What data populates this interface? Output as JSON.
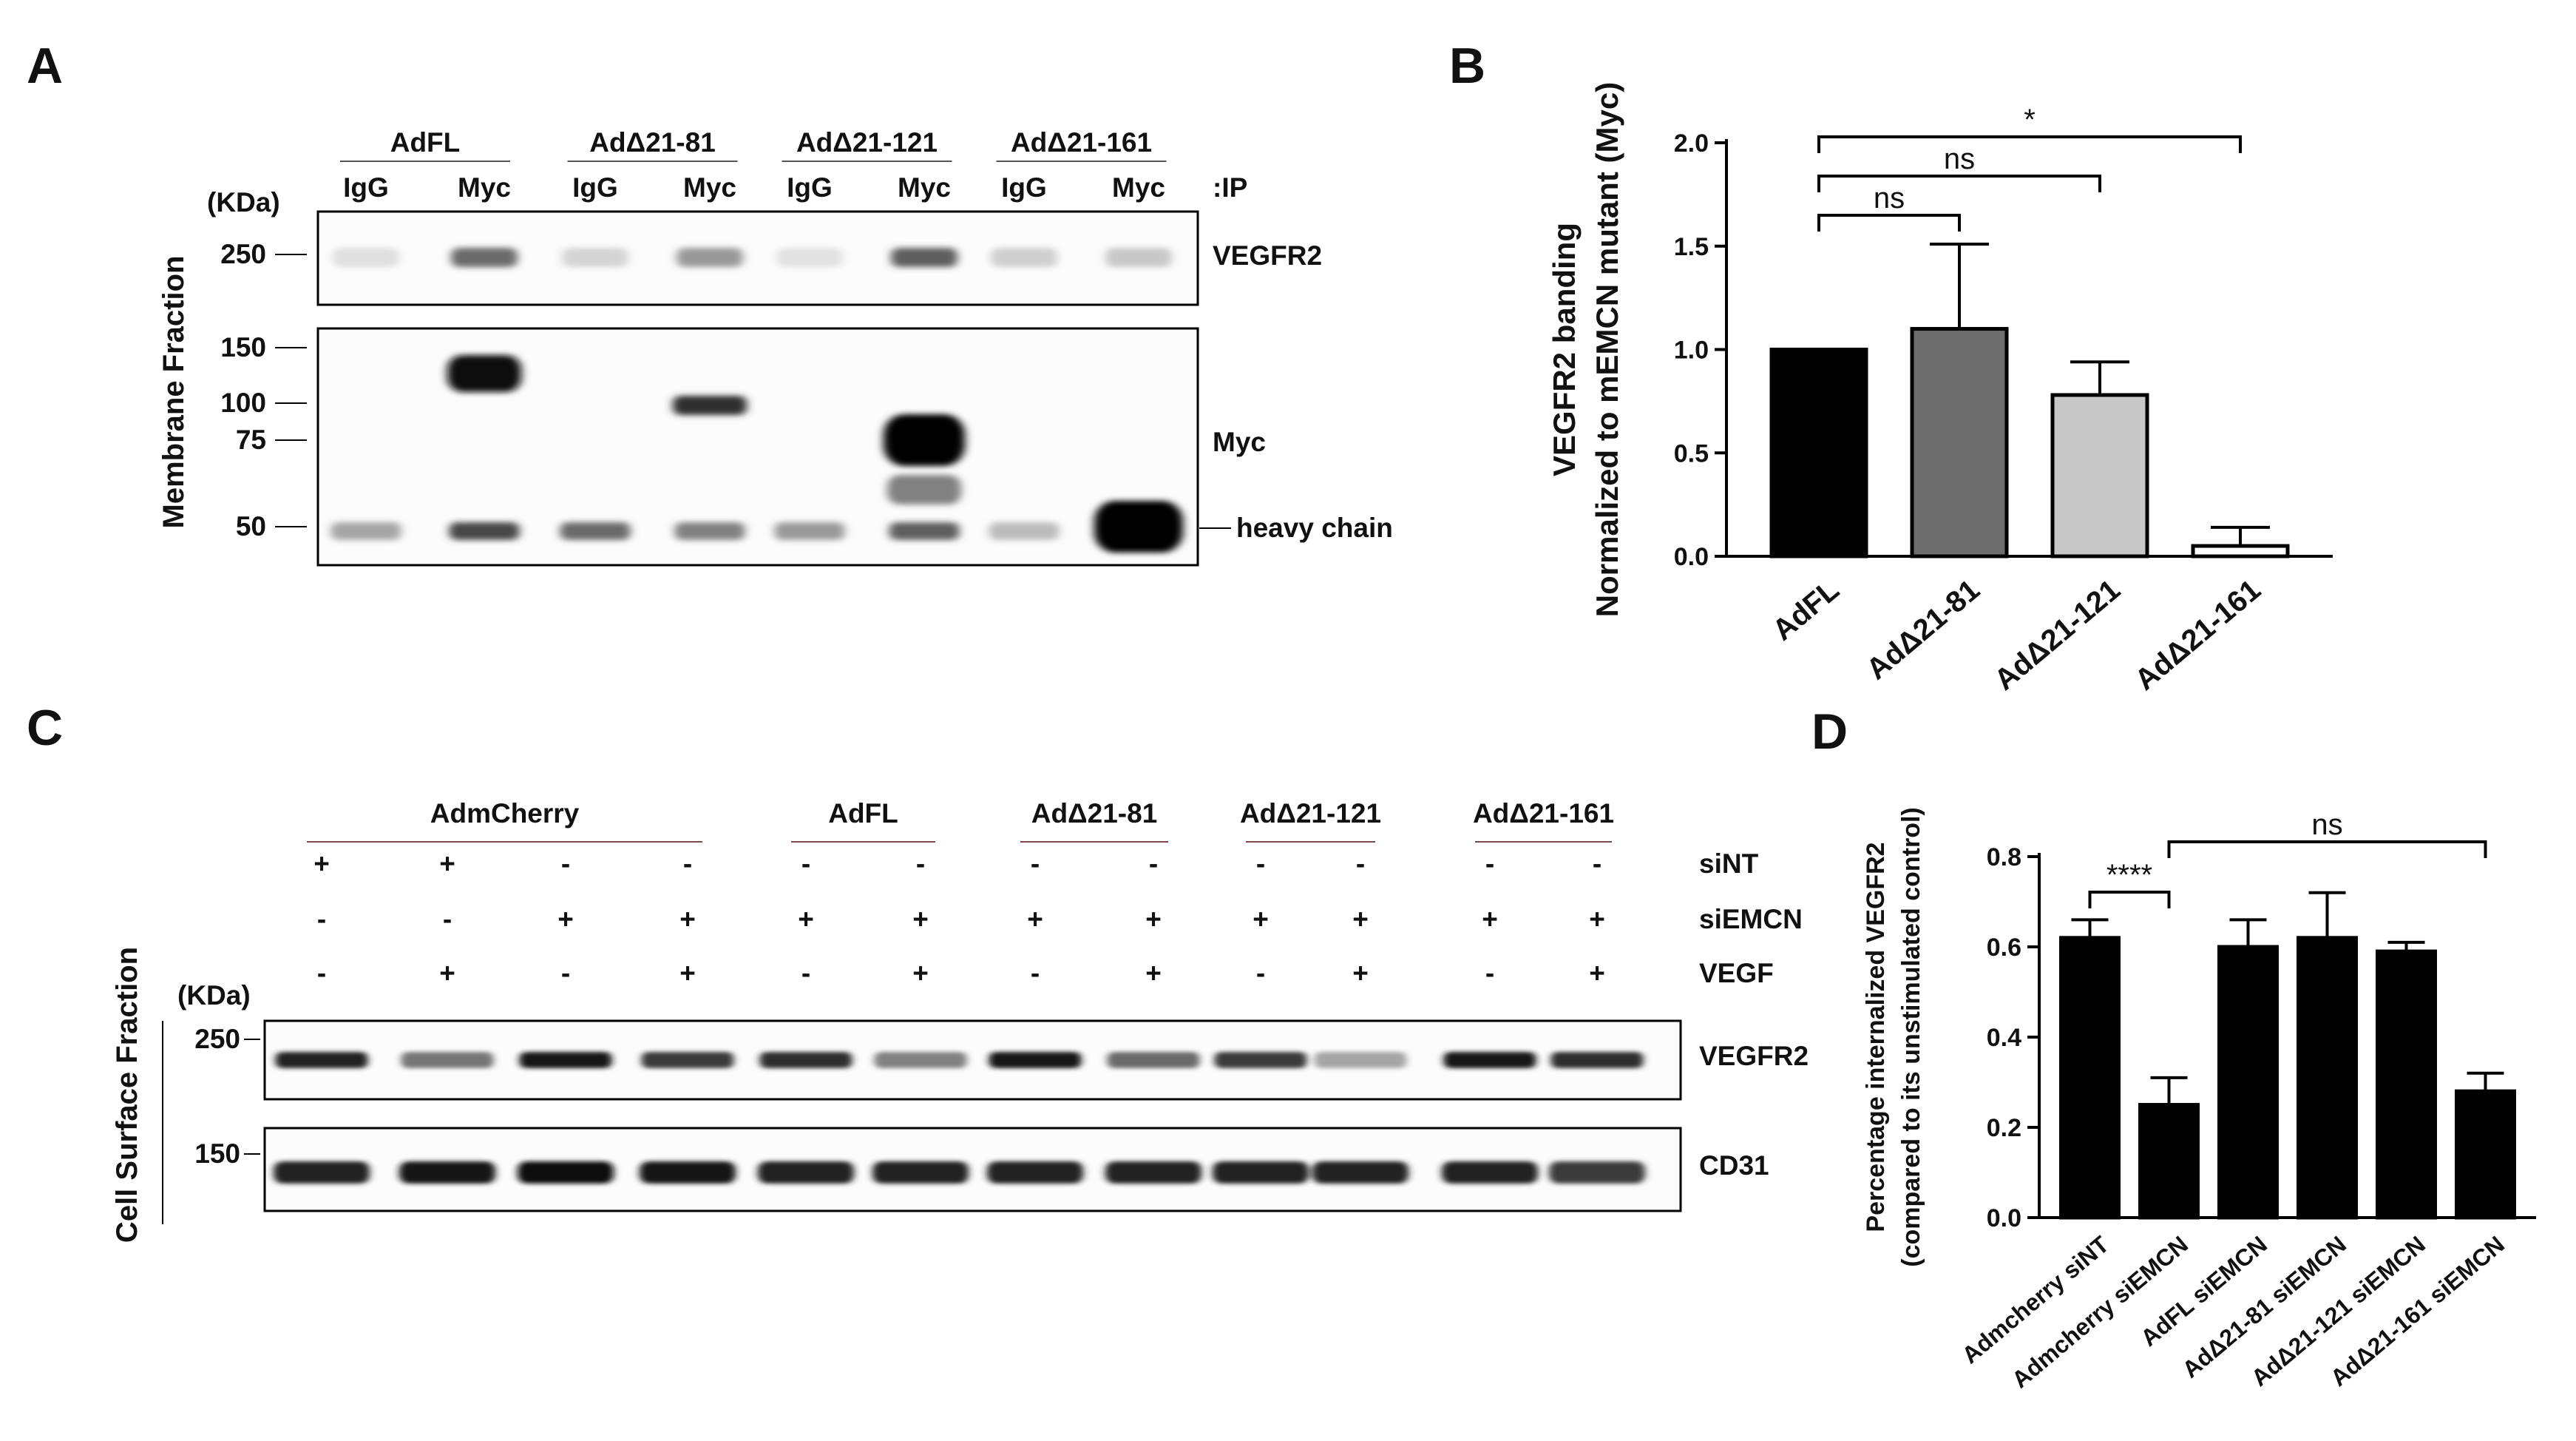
{
  "panel_labels": {
    "a": "A",
    "b": "B",
    "c": "C",
    "d": "D"
  },
  "panel_a": {
    "ylabel": "Membrane Fraction",
    "unit": "(KDa)",
    "ip_label": ":IP",
    "groups": [
      "AdFL",
      "AdΔ21-81",
      "AdΔ21-121",
      "AdΔ21-161"
    ],
    "lanes": [
      "IgG",
      "Myc",
      "IgG",
      "Myc",
      "IgG",
      "Myc",
      "IgG",
      "Myc"
    ],
    "top_marker": "250",
    "bottom_markers": [
      "150",
      "100",
      "75",
      "50"
    ],
    "blot_labels": {
      "top": "VEGFR2",
      "myc": "Myc",
      "heavy": "heavy chain"
    },
    "top_band_intensity": [
      0.05,
      0.55,
      0.1,
      0.35,
      0.04,
      0.6,
      0.12,
      0.15
    ],
    "myc_band_intensity": [
      0,
      0.95,
      0,
      0.8,
      0,
      1.0,
      0,
      0
    ],
    "heavy_band_intensity": [
      0.3,
      0.7,
      0.55,
      0.45,
      0.35,
      0.6,
      0.2,
      1.0
    ]
  },
  "panel_c": {
    "ylabel": "Cell Surface Fraction",
    "unit": "(KDa)",
    "groups": [
      "AdmCherry",
      "AdFL",
      "AdΔ21-81",
      "AdΔ21-121",
      "AdΔ21-161"
    ],
    "row_labels": [
      "siNT",
      "siEMCN",
      "VEGF"
    ],
    "siNT": [
      "+",
      "+",
      "-",
      "-",
      "-",
      "-",
      "-",
      "-",
      "-",
      "-",
      "-",
      "-"
    ],
    "siEMCN": [
      "-",
      "-",
      "+",
      "+",
      "+",
      "+",
      "+",
      "+",
      "+",
      "+",
      "+",
      "+"
    ],
    "VEGF": [
      "-",
      "+",
      "-",
      "+",
      "-",
      "+",
      "-",
      "+",
      "-",
      "+",
      "-",
      "+"
    ],
    "markers": [
      "250",
      "150"
    ],
    "blot_labels": [
      "VEGFR2",
      "CD31"
    ],
    "vegfr2_intensity": [
      0.85,
      0.5,
      0.9,
      0.75,
      0.8,
      0.45,
      0.9,
      0.55,
      0.75,
      0.3,
      0.9,
      0.8
    ],
    "cd31_intensity": [
      0.85,
      0.9,
      0.95,
      0.9,
      0.85,
      0.85,
      0.85,
      0.85,
      0.85,
      0.85,
      0.85,
      0.75
    ]
  },
  "chart_data": [
    {
      "type": "bar",
      "panel": "B",
      "ylabel": "VEGFR2 banding\nNormalized to mEMCN mutant (Myc)",
      "categories": [
        "AdFL",
        "AdΔ21-81",
        "AdΔ21-121",
        "AdΔ21-161"
      ],
      "values": [
        1.0,
        1.1,
        0.78,
        0.05
      ],
      "errors": [
        0,
        0.41,
        0.16,
        0.09
      ],
      "colors": [
        "#000000",
        "#6e6e6e",
        "#c8c8c8",
        "#ffffff"
      ],
      "ylim": [
        0,
        2.0
      ],
      "yticks": [
        "0.0",
        "0.5",
        "1.0",
        "1.5",
        "2.0"
      ],
      "significance": [
        {
          "from": 0,
          "to": 1,
          "label": "ns"
        },
        {
          "from": 0,
          "to": 2,
          "label": "ns"
        },
        {
          "from": 0,
          "to": 3,
          "label": "*"
        }
      ]
    },
    {
      "type": "bar",
      "panel": "D",
      "ylabel": "Percentage internalized VEGFR2\n(compared to its unstimulated control)",
      "categories": [
        "Admcherry siNT",
        "Admcherry siEMCN",
        "AdFL siEMCN",
        "AdΔ21-81 siEMCN",
        "AdΔ21-121 siEMCN",
        "AdΔ21-161 siEMCN"
      ],
      "values": [
        0.62,
        0.25,
        0.6,
        0.62,
        0.59,
        0.28
      ],
      "errors": [
        0.04,
        0.06,
        0.06,
        0.1,
        0.02,
        0.04
      ],
      "colors": [
        "#000000",
        "#000000",
        "#000000",
        "#000000",
        "#000000",
        "#000000"
      ],
      "ylim": [
        0,
        0.8
      ],
      "yticks": [
        "0.0",
        "0.2",
        "0.4",
        "0.6",
        "0.8"
      ],
      "significance": [
        {
          "from": 0,
          "to": 1,
          "label": "****"
        },
        {
          "from": 1,
          "to": 5,
          "label": "ns"
        }
      ]
    }
  ]
}
